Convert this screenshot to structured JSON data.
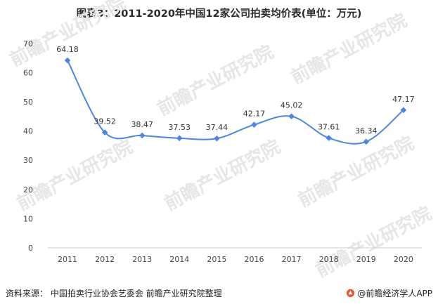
{
  "title": "图表3：2011-2020年中国12家公司拍卖均价表(单位：万元)",
  "source_text": "资料来源：  中国拍卖行业协会艺委会  前瞻产业研究院整理",
  "brand_text": "@前瞻经济学人APP",
  "watermark_text": "前瞻产业研究院",
  "chart_data": {
    "type": "line",
    "title": "图表3：2011-2020年中国12家公司拍卖均价表(单位：万元)",
    "xlabel": "",
    "ylabel": "",
    "categories": [
      "2011",
      "2012",
      "2013",
      "2014",
      "2015",
      "2016",
      "2017",
      "2018",
      "2019",
      "2020"
    ],
    "series": [
      {
        "values": [
          64.18,
          39.52,
          38.47,
          37.53,
          37.44,
          42.17,
          45.02,
          37.61,
          36.34,
          47.17
        ]
      }
    ],
    "data_labels": [
      "64.18",
      "39.52",
      "38.47",
      "37.53",
      "37.44",
      "42.17",
      "45.02",
      "37.61",
      "36.34",
      "47.17"
    ],
    "ylim": [
      0,
      70
    ],
    "yticks": [
      0,
      10,
      20,
      30,
      40,
      50,
      60,
      70
    ],
    "grid": false,
    "legend": "none",
    "line_color": "#4a86e8",
    "marker": "diamond",
    "smooth": true
  }
}
